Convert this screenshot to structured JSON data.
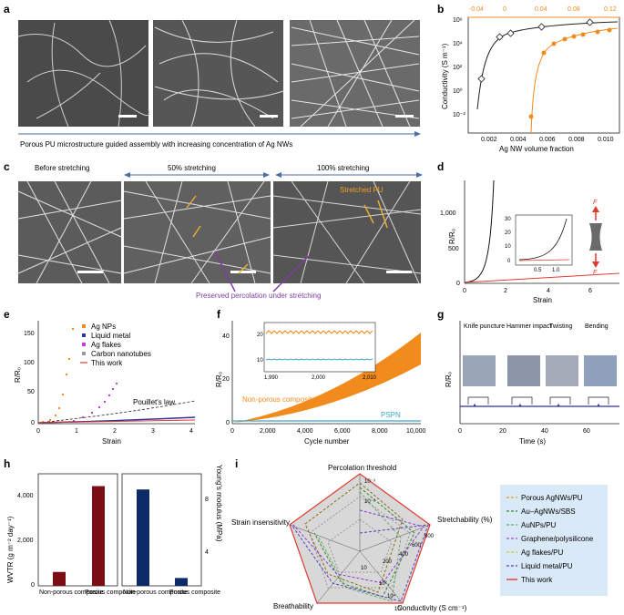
{
  "panels": {
    "a": {
      "label": "a",
      "caption": "Porous PU microstructure guided assembly with increasing concentration of Ag NWs"
    },
    "b": {
      "label": "b",
      "ylabel": "Conductivity (S m⁻¹)",
      "xlabel": "Ag NW volume fraction",
      "top_ticks": [
        "-0.04",
        "0",
        "0.04",
        "0.08",
        "0.12"
      ],
      "bottom_ticks": [
        "0.002",
        "0.004",
        "0.006",
        "0.008",
        "0.010"
      ],
      "y_ticks": [
        "10⁶",
        "10⁴",
        "10²",
        "10⁰",
        "10⁻²"
      ]
    },
    "c": {
      "label": "c",
      "stage1": "Before stretching",
      "stage2": "50% stretching",
      "stage3": "100% stretching",
      "note_stretched": "Stretched PU",
      "note_percolation": "Preserved percolation under stretching"
    },
    "d": {
      "label": "d",
      "ylabel": "R/R₀",
      "xlabel": "Strain",
      "y_ticks": [
        "1,000",
        "500",
        "0"
      ],
      "x_ticks": [
        "0",
        "2",
        "4",
        "6"
      ],
      "inset_y": [
        "30",
        "20",
        "10",
        "0"
      ],
      "inset_x": [
        "0.5",
        "1.0"
      ],
      "force_top": "F",
      "force_bottom": "F"
    },
    "e": {
      "label": "e",
      "ylabel": "R/R₀",
      "xlabel": "Strain",
      "y_ticks": [
        "150",
        "100",
        "50",
        "0"
      ],
      "x_ticks": [
        "0",
        "1",
        "2",
        "3",
        "4"
      ],
      "legend": [
        "Ag NPs",
        "Liquid metal",
        "Ag flakes",
        "Carbon nanotubes",
        "This work"
      ],
      "annotation": "Pouillet's law"
    },
    "f": {
      "label": "f",
      "ylabel": "R/R₀",
      "xlabel": "Cycle number",
      "y_ticks": [
        "40",
        "20",
        "0"
      ],
      "x_ticks": [
        "0",
        "2,000",
        "4,000",
        "6,000",
        "8,000",
        "10,000"
      ],
      "inset_y": [
        "20",
        "10"
      ],
      "inset_x": [
        "1,990",
        "2,000",
        "2,010"
      ],
      "series_nonporous": "Non-porous composite",
      "series_pspn": "PSPN"
    },
    "g": {
      "label": "g",
      "ylabel": "R/R₀",
      "xlabel": "Time (s)",
      "x_ticks": [
        "0",
        "20",
        "40",
        "60"
      ],
      "events": [
        "Knife puncture",
        "Hammer impact",
        "Twisting",
        "Bending"
      ]
    },
    "h": {
      "label": "h",
      "ylabel_left": "WVTR (g m⁻² day⁻¹)",
      "ylabel_right": "Young's modulus (MPa)",
      "left_ticks": [
        "4,000",
        "2,000",
        "0"
      ],
      "right_ticks": [
        "8",
        "4"
      ],
      "categories": [
        "Non-porous composite",
        "Porous composite"
      ],
      "wvtr": [
        620,
        4450
      ],
      "modulus": [
        8.6,
        0.7
      ]
    },
    "i": {
      "label": "i",
      "axes": [
        "Percolation threshold",
        "Stretchability (%)",
        "Conductivity (S cm⁻¹)",
        "Breathability",
        "Strain insensitivity"
      ],
      "tick_labels": [
        "10⁻³",
        "10⁻²",
        "800",
        "600",
        "400",
        "200",
        "10⁶",
        "10⁴",
        "10²",
        "10"
      ],
      "legend": [
        "Porous AgNWs/PU",
        "Au–AgNWs/SBS",
        "AuNPs/PU",
        "Graphene/polysilicone",
        "Ag flakes/PU",
        "Liquid metal/PU",
        "This work"
      ]
    }
  },
  "colors": {
    "orange": "#f28b1d",
    "blue_line": "#2f2f9f",
    "red": "#e03a2f",
    "purple": "#c23fd6",
    "dark_red_bar": "#7a0e14",
    "navy_bar": "#0c2b68",
    "cyan": "#39a8c8",
    "legend_bg": "#d9e9f8"
  }
}
